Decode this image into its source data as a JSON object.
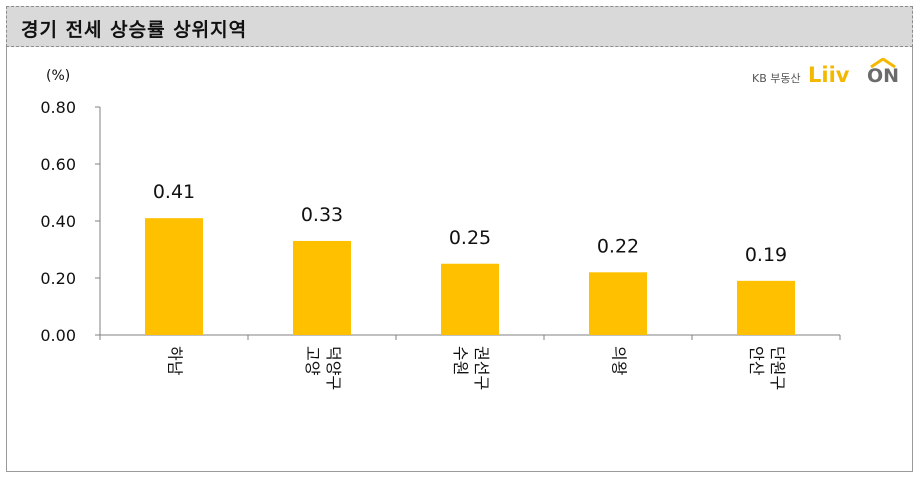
{
  "header": {
    "title": "경기 전세 상승률 상위지역"
  },
  "logo": {
    "company": "KB 부동산",
    "brand": "Liiv",
    "suffix": "ON",
    "brand_color": "#f5b800"
  },
  "chart_data": {
    "type": "bar",
    "unit_label": "(%)",
    "categories": [
      [
        "하남"
      ],
      [
        "고양",
        "덕양구"
      ],
      [
        "수원",
        "권선구"
      ],
      [
        "의왕"
      ],
      [
        "안산",
        "단원구"
      ]
    ],
    "values": [
      0.41,
      0.33,
      0.25,
      0.22,
      0.19
    ],
    "value_labels": [
      "0.41",
      "0.33",
      "0.25",
      "0.22",
      "0.19"
    ],
    "y_ticks": [
      "0.00",
      "0.20",
      "0.40",
      "0.60",
      "0.80"
    ],
    "ylim": [
      0,
      0.8
    ],
    "bar_color": "#ffc000",
    "grid": false,
    "legend": "none"
  }
}
